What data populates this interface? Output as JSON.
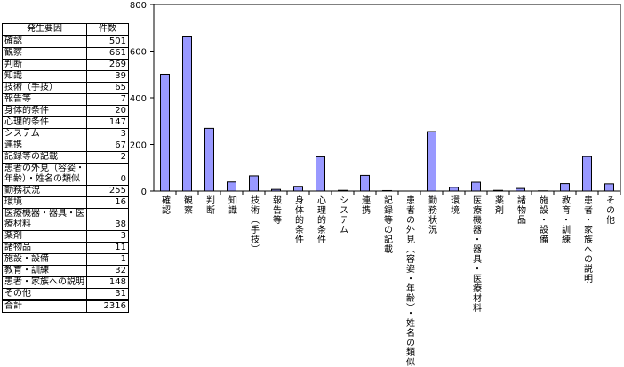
{
  "table": {
    "headers": [
      "発生要因",
      "件数"
    ],
    "rows": [
      [
        "確認",
        "501"
      ],
      [
        "観察",
        "661"
      ],
      [
        "判断",
        "269"
      ],
      [
        "知識",
        "39"
      ],
      [
        "技術（手技）",
        "65"
      ],
      [
        "報告等",
        "7"
      ],
      [
        "身体的条件",
        "20"
      ],
      [
        "心理的条件",
        "147"
      ],
      [
        "システム",
        "3"
      ],
      [
        "連携",
        "67"
      ],
      [
        "記録等の記載",
        "2"
      ],
      [
        "患者の外見（容姿・年齢）・姓名の類似",
        "0"
      ],
      [
        "勤務状況",
        "255"
      ],
      [
        "環境",
        "16"
      ],
      [
        "医療機器・器具・医療材料",
        "38"
      ],
      [
        "薬剤",
        "3"
      ],
      [
        "諸物品",
        "11"
      ],
      [
        "施設・設備",
        "1"
      ],
      [
        "教育・訓練",
        "32"
      ],
      [
        "患者・家族への説明",
        "148"
      ],
      [
        "その他",
        "31"
      ]
    ],
    "total": [
      "合計",
      "2316"
    ]
  },
  "chart_data": {
    "type": "bar",
    "categories": [
      "確認",
      "観察",
      "判断",
      "知識",
      "技術（手技）",
      "報告等",
      "身体的条件",
      "心理的条件",
      "システム",
      "連携",
      "記録等の記載",
      "患者の外見（容姿・年齢）・姓名の類似",
      "勤務状況",
      "環境",
      "医療機器・器具・医療材料",
      "薬剤",
      "諸物品",
      "施設・設備",
      "教育・訓練",
      "患者・家族への説明",
      "その他"
    ],
    "values": [
      501,
      661,
      269,
      39,
      65,
      7,
      20,
      147,
      3,
      67,
      2,
      0,
      255,
      16,
      38,
      3,
      11,
      1,
      32,
      148,
      31
    ],
    "yticks": [
      0,
      200,
      400,
      600,
      800
    ],
    "ylim": [
      0,
      800
    ],
    "grid": false,
    "legend": "none",
    "bar_color": "#9999ff"
  }
}
